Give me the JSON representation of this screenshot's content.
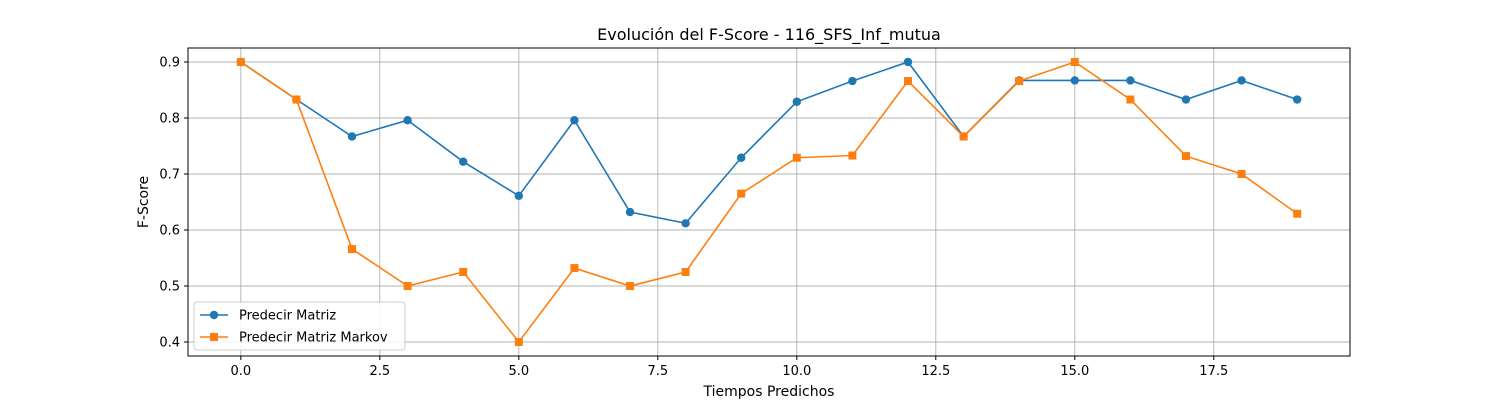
{
  "chart_data": {
    "type": "line",
    "title": "Evolución del F-Score - 116_SFS_Inf_mutua",
    "xlabel": "Tiempos Predichos",
    "ylabel": "F-Score",
    "xlim": [
      -0.95,
      19.95
    ],
    "ylim": [
      0.375,
      0.925
    ],
    "xticks": [
      0,
      2.5,
      5,
      7.5,
      10,
      12.5,
      15,
      17.5
    ],
    "xtick_labels": [
      "0.0",
      "2.5",
      "5.0",
      "7.5",
      "10.0",
      "12.5",
      "15.0",
      "17.5"
    ],
    "yticks": [
      0.4,
      0.5,
      0.6,
      0.7,
      0.8,
      0.9
    ],
    "ytick_labels": [
      "0.4",
      "0.5",
      "0.6",
      "0.7",
      "0.8",
      "0.9"
    ],
    "grid": true,
    "legend_position": "lower-left",
    "x": [
      0,
      1,
      2,
      3,
      4,
      5,
      6,
      7,
      8,
      9,
      10,
      11,
      12,
      13,
      14,
      15,
      16,
      17,
      18,
      19
    ],
    "series": [
      {
        "name": "Predecir Matriz",
        "color": "#1f77b4",
        "marker": "circle",
        "values": [
          0.9,
          0.833,
          0.767,
          0.796,
          0.722,
          0.661,
          0.796,
          0.632,
          0.612,
          0.729,
          0.829,
          0.866,
          0.9,
          0.767,
          0.867,
          0.867,
          0.867,
          0.833,
          0.867,
          0.833
        ]
      },
      {
        "name": "Predecir Matriz Markov",
        "color": "#ff7f0e",
        "marker": "square",
        "values": [
          0.9,
          0.833,
          0.566,
          0.5,
          0.525,
          0.4,
          0.532,
          0.5,
          0.525,
          0.665,
          0.729,
          0.733,
          0.866,
          0.767,
          0.866,
          0.9,
          0.833,
          0.732,
          0.7,
          0.629
        ]
      }
    ]
  }
}
